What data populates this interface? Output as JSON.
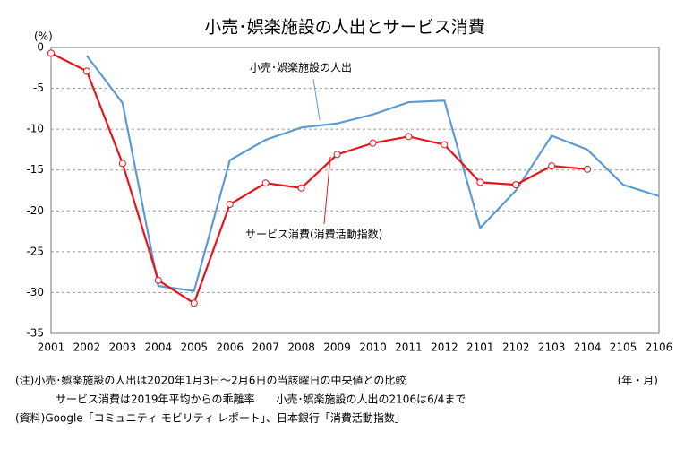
{
  "chart_data": {
    "type": "line",
    "title": "小売･娯楽施設の人出とサービス消費",
    "y_unit": "(%)",
    "x_unit": "(年・月)",
    "categories": [
      "2001",
      "2002",
      "2003",
      "2004",
      "2005",
      "2006",
      "2007",
      "2008",
      "2009",
      "2010",
      "2011",
      "2012",
      "2101",
      "2102",
      "2103",
      "2104",
      "2105",
      "2106"
    ],
    "series": [
      {
        "name": "小売･娯楽施設の人出",
        "color": "#5b9bd5",
        "marker": false,
        "values": [
          null,
          -1,
          -6.8,
          -29.2,
          -29.8,
          -13.8,
          -11.3,
          -9.8,
          -9.3,
          -8.2,
          -6.7,
          -6.5,
          -22.1,
          -17.5,
          -10.8,
          -12.5,
          -16.8,
          -18.2
        ]
      },
      {
        "name": "サービス消費(消費活動指数)",
        "color": "#e8141b",
        "marker": true,
        "values": [
          -0.7,
          -2.9,
          -14.2,
          -28.5,
          -31.3,
          -19.2,
          -16.6,
          -17.2,
          -13.1,
          -11.7,
          -10.9,
          -11.9,
          -16.5,
          -16.8,
          -14.5,
          -14.9,
          null,
          null
        ]
      }
    ],
    "ylim": [
      -35,
      0
    ],
    "yticks": [
      0,
      -5,
      -10,
      -15,
      -20,
      -25,
      -30,
      -35
    ],
    "grid": true,
    "notes": [
      "(注)小売･娯楽施設の人出は2020年1月3日～2月6日の当該曜日の中央値との比較",
      "サービス消費は2019年平均からの乖離率　　小売･娯楽施設の人出の2106は6/4まで",
      "(資料)Google「コミュニティ モビリティ レポート」、日本銀行「消費活動指数」"
    ]
  }
}
